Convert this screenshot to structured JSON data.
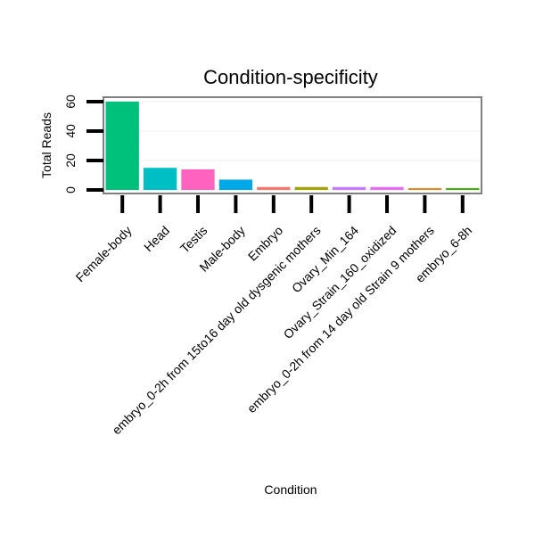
{
  "chart_data": {
    "type": "bar",
    "title": "Condition-specificity",
    "xlabel": "Condition",
    "ylabel": "Total Reads",
    "ylim": [
      0,
      63
    ],
    "yticks": [
      0,
      20,
      40,
      60
    ],
    "grid": true,
    "legend": "none",
    "categories": [
      "Female-body",
      "Head",
      "Testis",
      "Male-body",
      "Embryo",
      "embryo_0-2h from 15to16 day old dysgenic mothers",
      "Ovary_Min_164",
      "Ovary_Strain_160_oxidized",
      "embryo_0-2h from 14 day old Strain 9 mothers",
      "embryo_6-8h"
    ],
    "values": [
      60,
      15,
      14,
      7,
      2,
      2,
      2,
      2,
      1,
      1
    ],
    "colors": [
      "#00c17c",
      "#00bfc4",
      "#ff63bf",
      "#00a8e8",
      "#f7766d",
      "#a3a500",
      "#c77cff",
      "#e76bf3",
      "#e7861a",
      "#39b600"
    ]
  }
}
